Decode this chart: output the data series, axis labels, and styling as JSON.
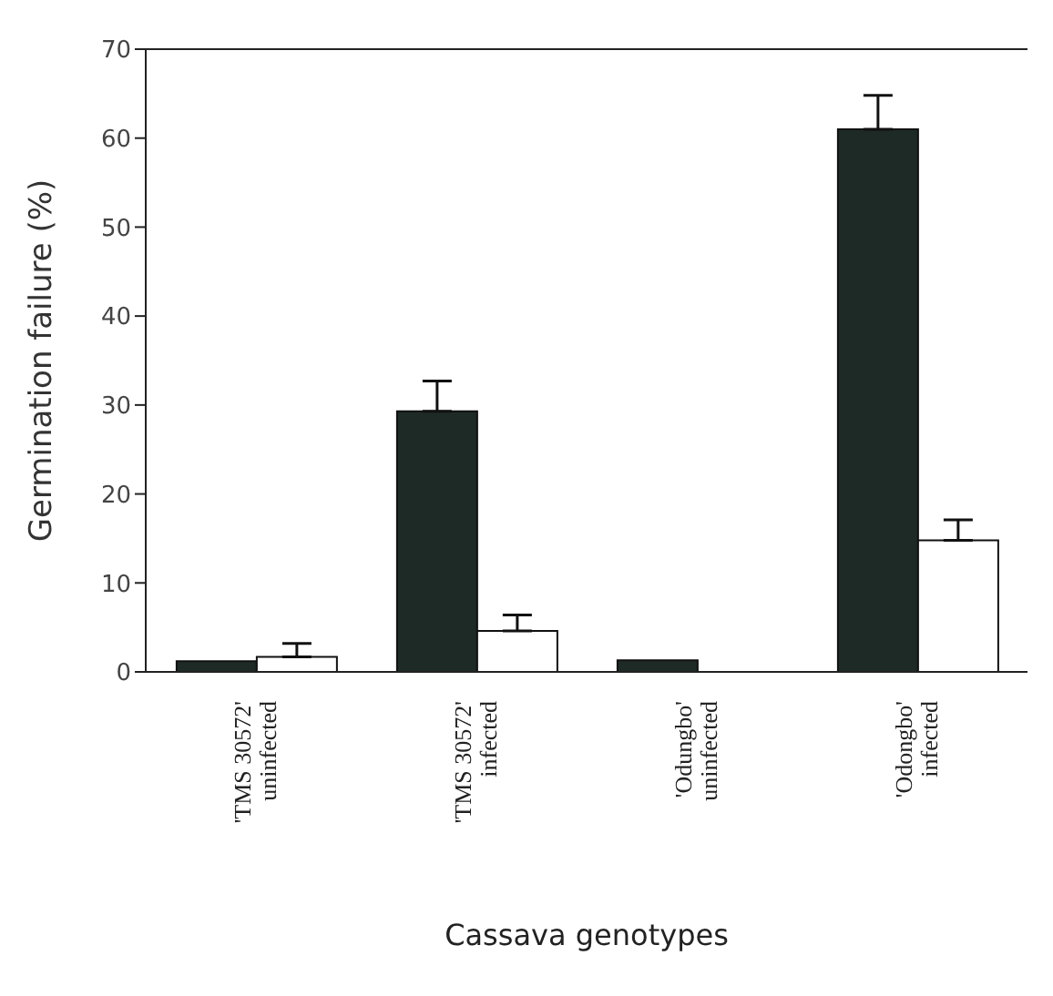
{
  "chart_data": {
    "type": "bar",
    "xlabel": "Cassava genotypes",
    "ylabel": "Germination  failure  (%)",
    "categories": [
      "'TMS 30572'\nuninfected",
      "'TMS 30572'\ninfected",
      "'Odungbo'\nuninfected",
      "'Odongbo'\ninfected"
    ],
    "series": [
      {
        "color": "#1e2a26",
        "values": [
          1.2,
          29.3,
          1.3,
          61
        ],
        "errors": [
          null,
          [
            29.3,
            32.7
          ],
          null,
          [
            61,
            64.8
          ]
        ]
      },
      {
        "color": "#ffffff",
        "values": [
          1.7,
          4.6,
          0,
          14.8
        ],
        "errors": [
          [
            1.7,
            3.2
          ],
          [
            4.6,
            6.4
          ],
          null,
          [
            14.8,
            17.1
          ]
        ]
      }
    ],
    "ylim": [
      0,
      70
    ],
    "yticks": [
      0,
      10,
      20,
      30,
      40,
      50,
      60,
      70
    ],
    "grid": false,
    "legend": false
  }
}
